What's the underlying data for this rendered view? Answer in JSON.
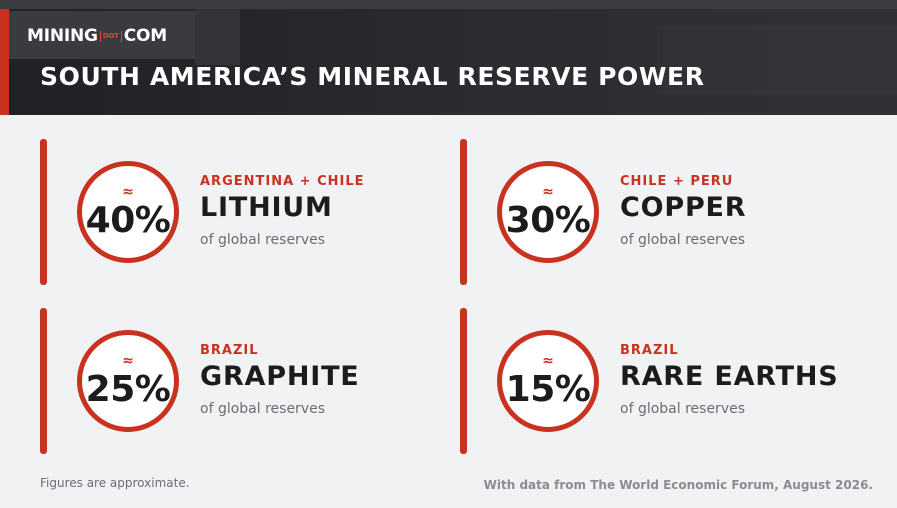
{
  "brand": {
    "logo_left": "MINING",
    "logo_dot": "DOT",
    "logo_right": "COM"
  },
  "title": "SOUTH AMERICA’S MINERAL RESERVE POWER",
  "cards": [
    {
      "approx": "≈",
      "percent": "40%",
      "region": "ARGENTINA + CHILE",
      "mineral": "LITHIUM",
      "caption": "of global reserves"
    },
    {
      "approx": "≈",
      "percent": "30%",
      "region": "CHILE + PERU",
      "mineral": "COPPER",
      "caption": "of global reserves"
    },
    {
      "approx": "≈",
      "percent": "25%",
      "region": "BRAZIL",
      "mineral": "GRAPHITE",
      "caption": "of global reserves"
    },
    {
      "approx": "≈",
      "percent": "15%",
      "region": "BRAZIL",
      "mineral": "RARE EARTHS",
      "caption": "of global reserves"
    }
  ],
  "footnote": "Figures are approximate.",
  "source": "With data from The World Economic Forum, August 2026.",
  "colors": {
    "accent": "#c8321f",
    "header_bg": "#1f2124",
    "page_bg": "#f1f2f4",
    "text_dark": "#1c1c1e",
    "text_muted": "#6b6d72"
  }
}
